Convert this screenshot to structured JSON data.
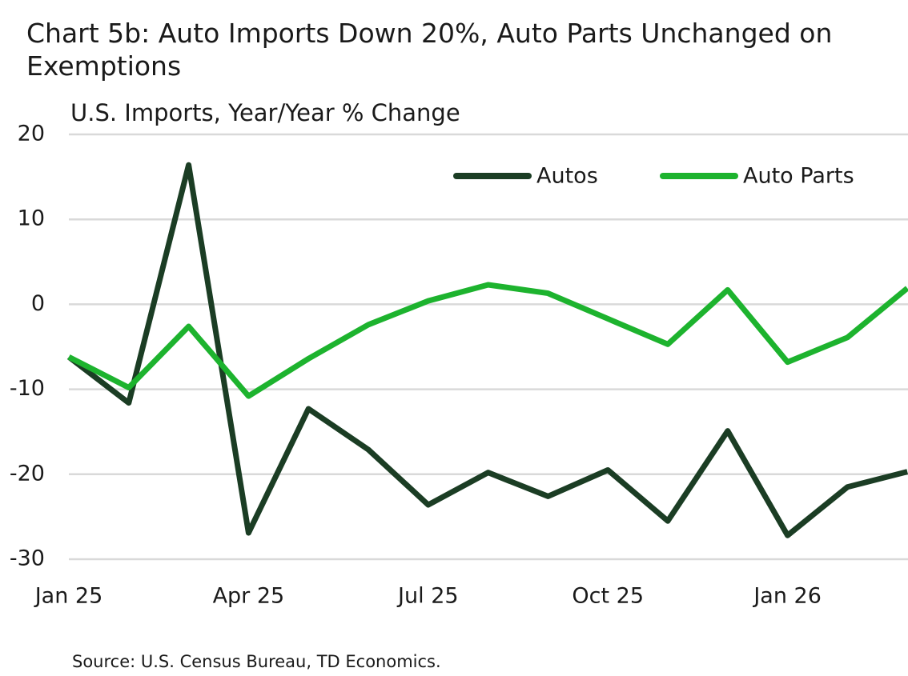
{
  "chart_data": {
    "type": "line",
    "title": "Chart 5b: Auto Imports Down 20%, Auto Parts Unchanged on Exemptions",
    "subtitle": "U.S. Imports, Year/Year % Change",
    "source": "Source: U.S. Census Bureau, TD Economics.",
    "categories": [
      "Jan 25",
      null,
      null,
      "Apr 25",
      null,
      null,
      "Jul 25",
      null,
      null,
      "Oct 25",
      null,
      null,
      "Jan 26",
      null,
      null
    ],
    "series": [
      {
        "name": "Autos",
        "color": "#1b3d24",
        "values": [
          -6.2,
          -11.6,
          16.4,
          -26.9,
          -12.3,
          -17.1,
          -23.6,
          -19.8,
          -22.6,
          -19.5,
          -25.5,
          -14.9,
          -27.2,
          -21.5,
          -19.7
        ]
      },
      {
        "name": "Auto Parts",
        "color": "#1db32e",
        "values": [
          -6.2,
          -9.8,
          -2.6,
          -10.8,
          -6.4,
          -2.4,
          0.4,
          2.3,
          1.3,
          -1.7,
          -4.7,
          1.7,
          -6.8,
          -3.9,
          1.9
        ]
      }
    ],
    "ylim": [
      -30,
      20
    ],
    "yticks": [
      -30,
      -20,
      -10,
      0,
      10,
      20
    ],
    "grid": true,
    "legend": "top-right"
  }
}
